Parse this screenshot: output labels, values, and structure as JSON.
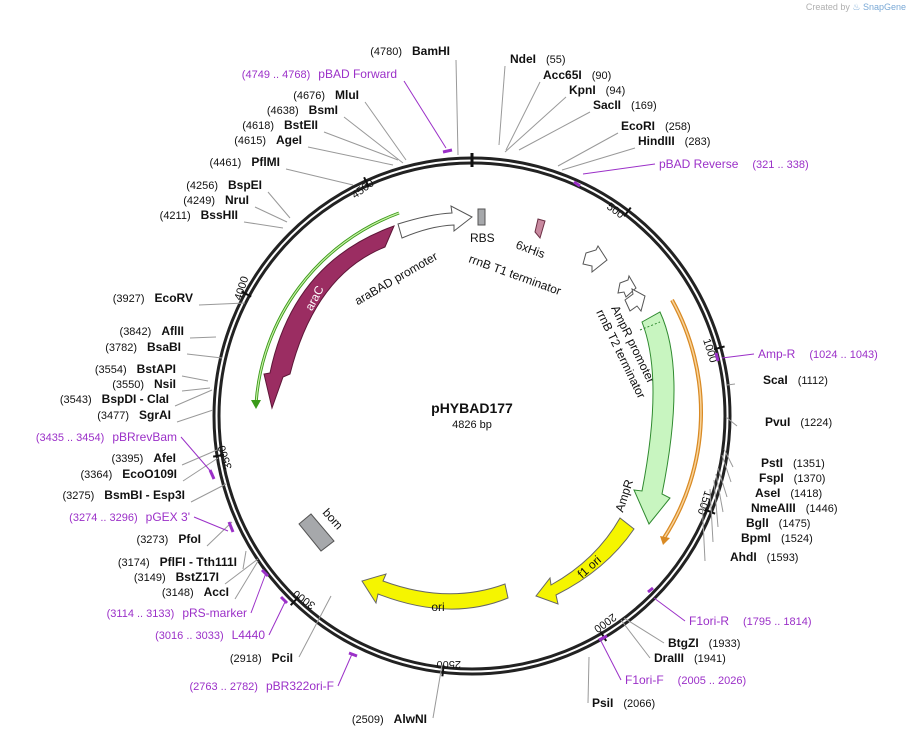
{
  "credit": {
    "prefix": "Created by",
    "brand": "SnapGene"
  },
  "plasmid": {
    "name": "pHYBAD177",
    "size_label": "4826 bp",
    "length": 4826
  },
  "colors": {
    "primer": "#9b30c8",
    "backbone": "#222222",
    "araC": "#9b2d62",
    "ampR": "#c8f5c0",
    "ori": "#f5f500",
    "promoter": "#ffffff",
    "bom": "#a6a8ab",
    "green_ring": "#3a9a1a",
    "orange_ring": "#e2902a"
  },
  "ticks": [
    {
      "pos": 500,
      "label": "500"
    },
    {
      "pos": 1000,
      "label": "1000"
    },
    {
      "pos": 1500,
      "label": "1500"
    },
    {
      "pos": 2000,
      "label": "2000"
    },
    {
      "pos": 2500,
      "label": "2500"
    },
    {
      "pos": 3000,
      "label": "3000"
    },
    {
      "pos": 3500,
      "label": "3500"
    },
    {
      "pos": 4000,
      "label": "4000"
    },
    {
      "pos": 4500,
      "label": "4500"
    }
  ],
  "features": [
    {
      "id": "araC",
      "label": "araC",
      "start": 3420,
      "end": 4300,
      "strand": -1,
      "kind": "cds"
    },
    {
      "id": "araBAD",
      "label": "araBAD promoter",
      "start": 4410,
      "end": 4720,
      "strand": 1,
      "kind": "promoter"
    },
    {
      "id": "rbs",
      "label": "RBS",
      "start": 4800,
      "end": 4815,
      "strand": 1,
      "kind": "rbs"
    },
    {
      "id": "his",
      "label": "6xHis",
      "start": 170,
      "end": 190,
      "strand": 1,
      "kind": "tag"
    },
    {
      "id": "rrnbT1",
      "label": "rrnB T1 terminator",
      "start": 420,
      "end": 510,
      "strand": 1,
      "kind": "terminator"
    },
    {
      "id": "rrnbT2",
      "label": "rrnB T2 terminator",
      "start": 600,
      "end": 640,
      "strand": 1,
      "kind": "terminator"
    },
    {
      "id": "ampProm",
      "label": "AmpR promoter",
      "start": 690,
      "end": 780,
      "strand": 1,
      "kind": "promoter"
    },
    {
      "id": "ampR",
      "label": "AmpR",
      "start": 790,
      "end": 1580,
      "strand": 1,
      "kind": "cds"
    },
    {
      "id": "f1ori",
      "label": "f1 ori",
      "start": 1620,
      "end": 2020,
      "strand": -1,
      "kind": "ori"
    },
    {
      "id": "ori",
      "label": "ori",
      "start": 2220,
      "end": 2830,
      "strand": -1,
      "kind": "ori"
    },
    {
      "id": "bom",
      "label": "bom",
      "start": 3220,
      "end": 3290,
      "strand": 1,
      "kind": "bom"
    }
  ],
  "sites": {
    "right": [
      {
        "name": "NdeI",
        "pos": "(55)"
      },
      {
        "name": "Acc65I",
        "pos": "(90)"
      },
      {
        "name": "KpnI",
        "pos": "(94)"
      },
      {
        "name": "SacII",
        "pos": "(169)"
      },
      {
        "name": "EcoRI",
        "pos": "(258)"
      },
      {
        "name": "HindIII",
        "pos": "(283)"
      },
      {
        "name": "ScaI",
        "pos": "(1112)"
      },
      {
        "name": "PvuI",
        "pos": "(1224)"
      },
      {
        "name": "PstI",
        "pos": "(1351)"
      },
      {
        "name": "FspI",
        "pos": "(1370)"
      },
      {
        "name": "AseI",
        "pos": "(1418)"
      },
      {
        "name": "NmeAIII",
        "pos": "(1446)"
      },
      {
        "name": "BglI",
        "pos": "(1475)"
      },
      {
        "name": "BpmI",
        "pos": "(1524)"
      },
      {
        "name": "AhdI",
        "pos": "(1593)"
      },
      {
        "name": "BtgZI",
        "pos": "(1933)"
      },
      {
        "name": "DraIII",
        "pos": "(1941)"
      },
      {
        "name": "PsiI",
        "pos": "(2066)"
      }
    ],
    "left": [
      {
        "name": "BamHI",
        "pos": "(4780)"
      },
      {
        "name": "MluI",
        "pos": "(4676)"
      },
      {
        "name": "BsmI",
        "pos": "(4638)"
      },
      {
        "name": "BstEII",
        "pos": "(4618)"
      },
      {
        "name": "AgeI",
        "pos": "(4615)"
      },
      {
        "name": "PflMI",
        "pos": "(4461)"
      },
      {
        "name": "BspEI",
        "pos": "(4256)"
      },
      {
        "name": "NruI",
        "pos": "(4249)"
      },
      {
        "name": "BssHII",
        "pos": "(4211)"
      },
      {
        "name": "EcoRV",
        "pos": "(3927)"
      },
      {
        "name": "AflII",
        "pos": "(3842)"
      },
      {
        "name": "BsaBI",
        "pos": "(3782)"
      },
      {
        "name": "BstAPI",
        "pos": "(3554)"
      },
      {
        "name": "NsiI",
        "pos": "(3550)"
      },
      {
        "name": "BspDI - ClaI",
        "pos": "(3543)"
      },
      {
        "name": "SgrAI",
        "pos": "(3477)"
      },
      {
        "name": "AfeI",
        "pos": "(3395)"
      },
      {
        "name": "EcoO109I",
        "pos": "(3364)"
      },
      {
        "name": "BsmBI - Esp3I",
        "pos": "(3275)"
      },
      {
        "name": "PfoI",
        "pos": "(3273)"
      },
      {
        "name": "PflFI - Tth111I",
        "pos": "(3174)"
      },
      {
        "name": "BstZ17I",
        "pos": "(3149)"
      },
      {
        "name": "AccI",
        "pos": "(3148)"
      },
      {
        "name": "PciI",
        "pos": "(2918)"
      },
      {
        "name": "AlwNI",
        "pos": "(2509)"
      }
    ]
  },
  "primers": [
    {
      "name": "pBAD Forward",
      "range": "(4749 .. 4768)"
    },
    {
      "name": "pBAD Reverse",
      "range": "(321 .. 338)"
    },
    {
      "name": "Amp-R",
      "range": "(1024 .. 1043)"
    },
    {
      "name": "F1ori-R",
      "range": "(1795 .. 1814)"
    },
    {
      "name": "F1ori-F",
      "range": "(2005 .. 2026)"
    },
    {
      "name": "pBR322ori-F",
      "range": "(2763 .. 2782)"
    },
    {
      "name": "L4440",
      "range": "(3016 .. 3033)"
    },
    {
      "name": "pRS-marker",
      "range": "(3114 .. 3133)"
    },
    {
      "name": "pGEX 3'",
      "range": "(3274 .. 3296)"
    },
    {
      "name": "pBRrevBam",
      "range": "(3435 .. 3454)"
    }
  ]
}
